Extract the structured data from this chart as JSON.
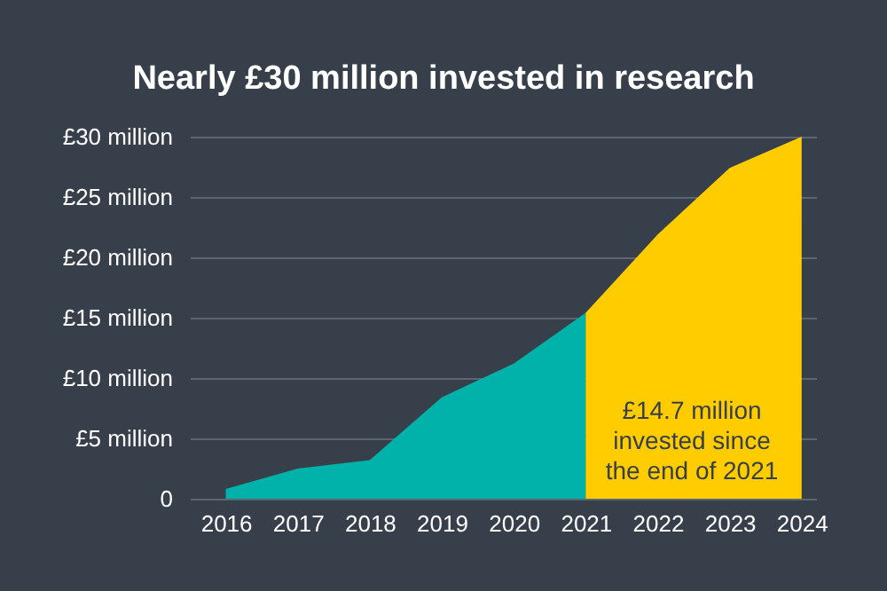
{
  "chart_data": {
    "type": "area",
    "title": "Nearly £30 million invested in research",
    "series": [
      {
        "x": [
          2016,
          2017,
          2018,
          2019,
          2020,
          2021
        ],
        "values": [
          0.8,
          2.5,
          3.2,
          8.4,
          11.2,
          15.4
        ],
        "color": "#00b2a9"
      },
      {
        "x": [
          2021,
          2022,
          2023,
          2024
        ],
        "values": [
          15.4,
          21.9,
          27.4,
          30
        ],
        "color": "#ffcc00"
      }
    ],
    "xlim": [
      2015.5,
      2024.2
    ],
    "xticks": [
      2016,
      2017,
      2018,
      2019,
      2020,
      2021,
      2022,
      2023,
      2024
    ],
    "ylim": [
      0,
      30
    ],
    "yticks": [
      {
        "value": 0,
        "label": "0"
      },
      {
        "value": 5,
        "label": "£5 million"
      },
      {
        "value": 10,
        "label": "£10 million"
      },
      {
        "value": 15,
        "label": "£15 million"
      },
      {
        "value": 20,
        "label": "£20 million"
      },
      {
        "value": 25,
        "label": "£25 million"
      },
      {
        "value": 30,
        "label": "£30 million"
      }
    ],
    "grid": "y",
    "annotations": [
      "£14.7 million invested since the end of 2021"
    ]
  }
}
